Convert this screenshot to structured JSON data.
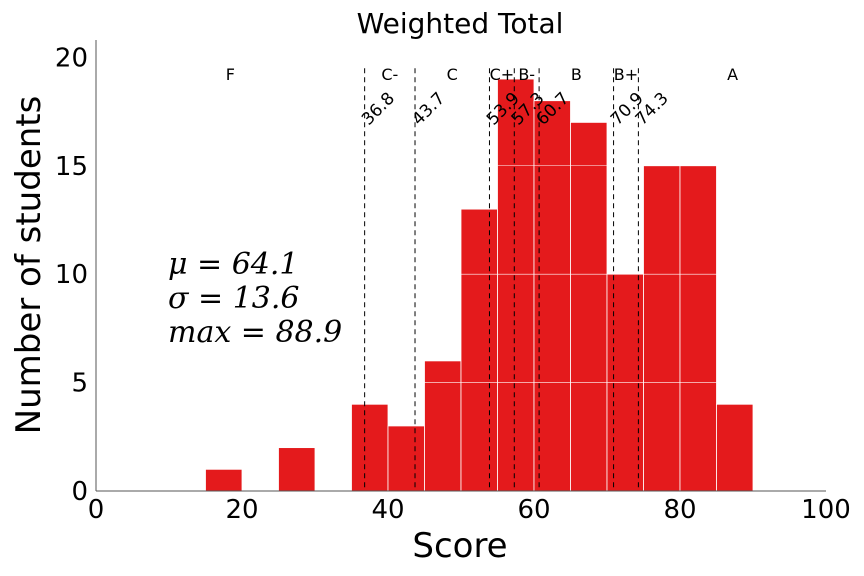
{
  "chart_data": {
    "type": "bar",
    "title": "Weighted Total",
    "xlabel": "Score",
    "ylabel": "Number of students",
    "xlim": [
      0,
      100
    ],
    "ylim": [
      0,
      20.8
    ],
    "xticks": [
      "0",
      "20",
      "40",
      "60",
      "80",
      "100"
    ],
    "yticks": [
      "0",
      "5",
      "10",
      "15",
      "20"
    ],
    "grid": false,
    "bar_color": "#e41a1c",
    "bins": [
      {
        "x0": 15,
        "x1": 20,
        "count": 1
      },
      {
        "x0": 25,
        "x1": 30,
        "count": 2
      },
      {
        "x0": 35,
        "x1": 40,
        "count": 4
      },
      {
        "x0": 40,
        "x1": 45,
        "count": 3
      },
      {
        "x0": 45,
        "x1": 50,
        "count": 6
      },
      {
        "x0": 50,
        "x1": 55,
        "count": 13
      },
      {
        "x0": 55,
        "x1": 60,
        "count": 19
      },
      {
        "x0": 60,
        "x1": 65,
        "count": 18
      },
      {
        "x0": 65,
        "x1": 70,
        "count": 17
      },
      {
        "x0": 70,
        "x1": 75,
        "count": 10
      },
      {
        "x0": 75,
        "x1": 80,
        "count": 15
      },
      {
        "x0": 80,
        "x1": 85,
        "count": 15
      },
      {
        "x0": 85,
        "x1": 90,
        "count": 4
      }
    ],
    "cutoffs": [
      {
        "value": 36.8,
        "label": "36.8"
      },
      {
        "value": 43.7,
        "label": "43.7"
      },
      {
        "value": 53.9,
        "label": "53.9"
      },
      {
        "value": 57.3,
        "label": "57.3"
      },
      {
        "value": 60.7,
        "label": "60.7"
      },
      {
        "value": 70.9,
        "label": "70.9"
      },
      {
        "value": 74.3,
        "label": "74.3"
      }
    ],
    "grades": [
      {
        "label": "F",
        "x": 18.4
      },
      {
        "label": "C-",
        "x": 40.25
      },
      {
        "label": "C",
        "x": 48.8
      },
      {
        "label": "C+",
        "x": 55.6
      },
      {
        "label": "B-",
        "x": 59.0
      },
      {
        "label": "B",
        "x": 65.8
      },
      {
        "label": "B+",
        "x": 72.6
      },
      {
        "label": "A",
        "x": 87.2
      }
    ],
    "stats": [
      {
        "label": "μ = 64.1"
      },
      {
        "label": "σ = 13.6"
      },
      {
        "label": "max = 88.9"
      }
    ]
  }
}
